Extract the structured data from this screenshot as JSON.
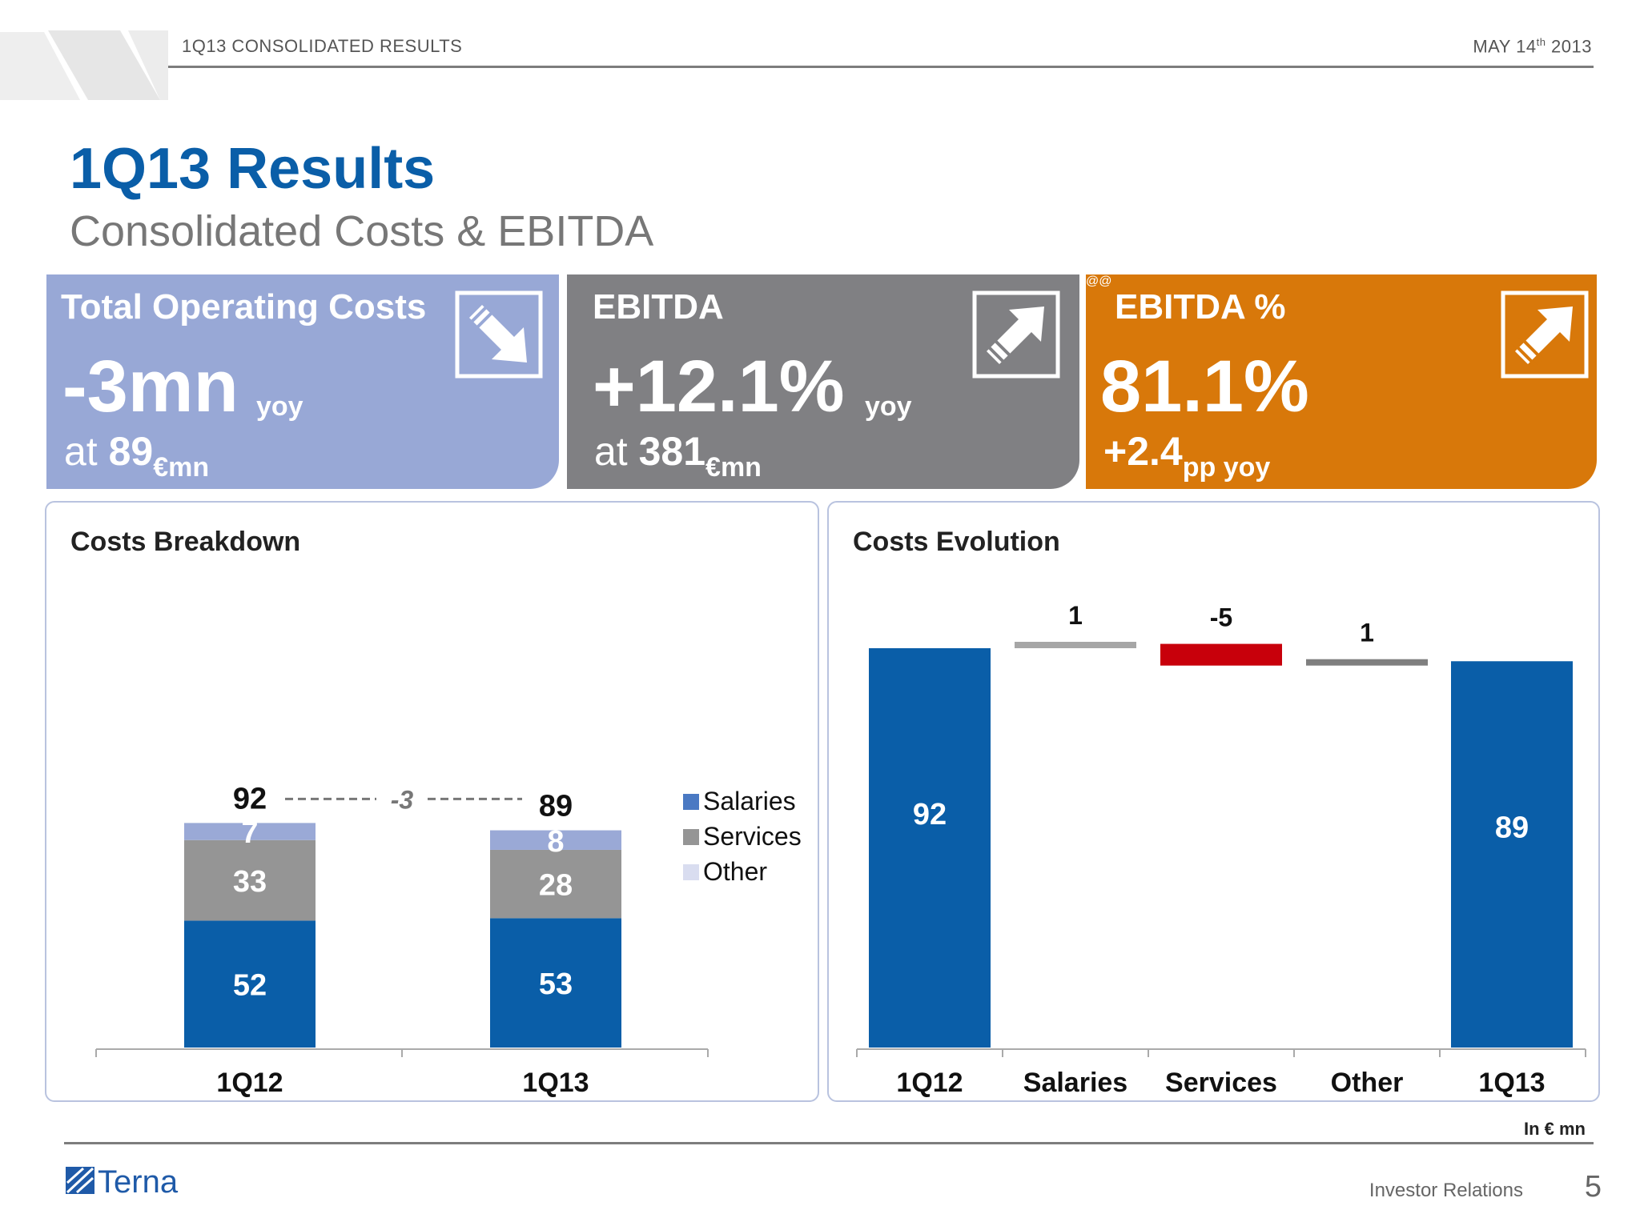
{
  "header": {
    "left": "1Q13 CONSOLIDATED RESULTS",
    "date_prefix": "MAY 14",
    "date_sup": "th",
    "date_suffix": " 2013"
  },
  "title": "1Q13 Results",
  "subtitle": "Consolidated Costs & EBITDA",
  "kpis": [
    {
      "label": "Total Operating Costs",
      "value": "-3mn",
      "yoy": "yoy",
      "at_prefix": "at ",
      "at_value": "89",
      "at_unit": "€mn",
      "icon": "arrow-down-right-icon",
      "color": "#98a8d6"
    },
    {
      "label": "EBITDA",
      "value": "+12.1%",
      "yoy": "yoy",
      "at_prefix": "at ",
      "at_value": "381",
      "at_unit": "€mn",
      "icon": "arrow-up-right-icon",
      "color": "#808083"
    },
    {
      "label": "EBITDA %",
      "value": "81.1%",
      "sub_value": "+2.4",
      "sub_unit": "pp yoy",
      "icon": "arrow-up-right-icon",
      "color": "#d8780a"
    }
  ],
  "panels": {
    "breakdown_title": "Costs Breakdown",
    "evolution_title": "Costs Evolution"
  },
  "chart_data": [
    {
      "type": "bar",
      "stacked": true,
      "title": "Costs Breakdown",
      "categories": [
        "1Q12",
        "1Q13"
      ],
      "series": [
        {
          "name": "Salaries",
          "values": [
            52,
            53
          ],
          "color": "#0a5ea8"
        },
        {
          "name": "Services",
          "values": [
            33,
            28
          ],
          "color": "#959595"
        },
        {
          "name": "Other",
          "values": [
            7,
            8
          ],
          "color": "#9aa9d6"
        }
      ],
      "totals": [
        92,
        89
      ],
      "delta_label": "-3",
      "legend_position": "right",
      "legend_colors": [
        "#4a79c3",
        "#959595",
        "#d9ddf0"
      ]
    },
    {
      "type": "bar",
      "subtype": "waterfall",
      "title": "Costs Evolution",
      "categories": [
        "1Q12",
        "Salaries",
        "Services",
        "Other",
        "1Q13"
      ],
      "values": [
        92,
        1,
        -5,
        1,
        89
      ],
      "labels": [
        "92",
        "1",
        "-5",
        "1",
        "89"
      ],
      "colors": [
        "#0a5ea8",
        "#a6a6a6",
        "#c8000b",
        "#7f7f7f",
        "#0a5ea8"
      ]
    }
  ],
  "footer": {
    "unit": "In € mn",
    "logo_text": "Terna",
    "ir": "Investor Relations",
    "page": "5"
  }
}
